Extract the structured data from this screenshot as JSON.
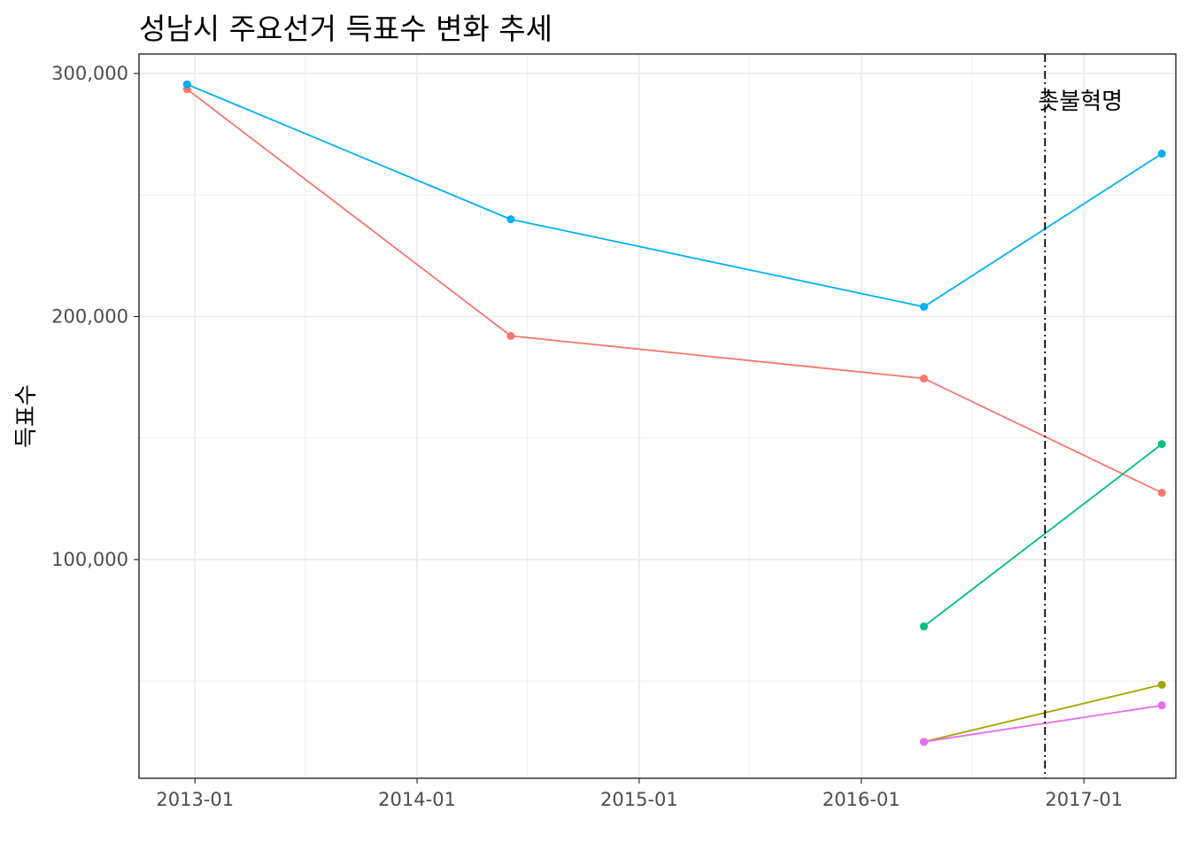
{
  "chart_data": {
    "type": "line",
    "title": "성남시 주요선거 득표수 변화 추세",
    "xlabel": "",
    "ylabel": "득표수",
    "x_ticks": [
      "2013-01",
      "2014-01",
      "2015-01",
      "2016-01",
      "2017-01"
    ],
    "y_ticks": [
      100000,
      200000,
      300000
    ],
    "y_tick_labels": [
      "100,000",
      "200,000",
      "300,000"
    ],
    "xlim": [
      "2012-10-01",
      "2017-06-01"
    ],
    "ylim": [
      10000,
      308000
    ],
    "grid": true,
    "legend": "none",
    "annotation": {
      "text": "촛불혁명",
      "x": "2016-10-29",
      "line_style": "dot-dash",
      "color": "#000000"
    },
    "series": [
      {
        "color": "#F8766D",
        "points": [
          {
            "x": "2012-12-19",
            "y": 293500
          },
          {
            "x": "2014-06-04",
            "y": 192000
          },
          {
            "x": "2016-04-13",
            "y": 174500
          },
          {
            "x": "2017-05-09",
            "y": 127500
          }
        ]
      },
      {
        "color": "#00B0F6",
        "points": [
          {
            "x": "2012-12-19",
            "y": 295500
          },
          {
            "x": "2014-06-04",
            "y": 240000
          },
          {
            "x": "2016-04-13",
            "y": 204000
          },
          {
            "x": "2017-05-09",
            "y": 267000
          }
        ]
      },
      {
        "color": "#00BF7D",
        "points": [
          {
            "x": "2016-04-13",
            "y": 72500
          },
          {
            "x": "2017-05-09",
            "y": 147500
          }
        ]
      },
      {
        "color": "#A3A500",
        "points": [
          {
            "x": "2016-04-13",
            "y": 25000
          },
          {
            "x": "2017-05-09",
            "y": 48500
          }
        ]
      },
      {
        "color": "#E76BF3",
        "points": [
          {
            "x": "2016-04-13",
            "y": 25000
          },
          {
            "x": "2017-05-09",
            "y": 40000
          }
        ]
      }
    ]
  }
}
